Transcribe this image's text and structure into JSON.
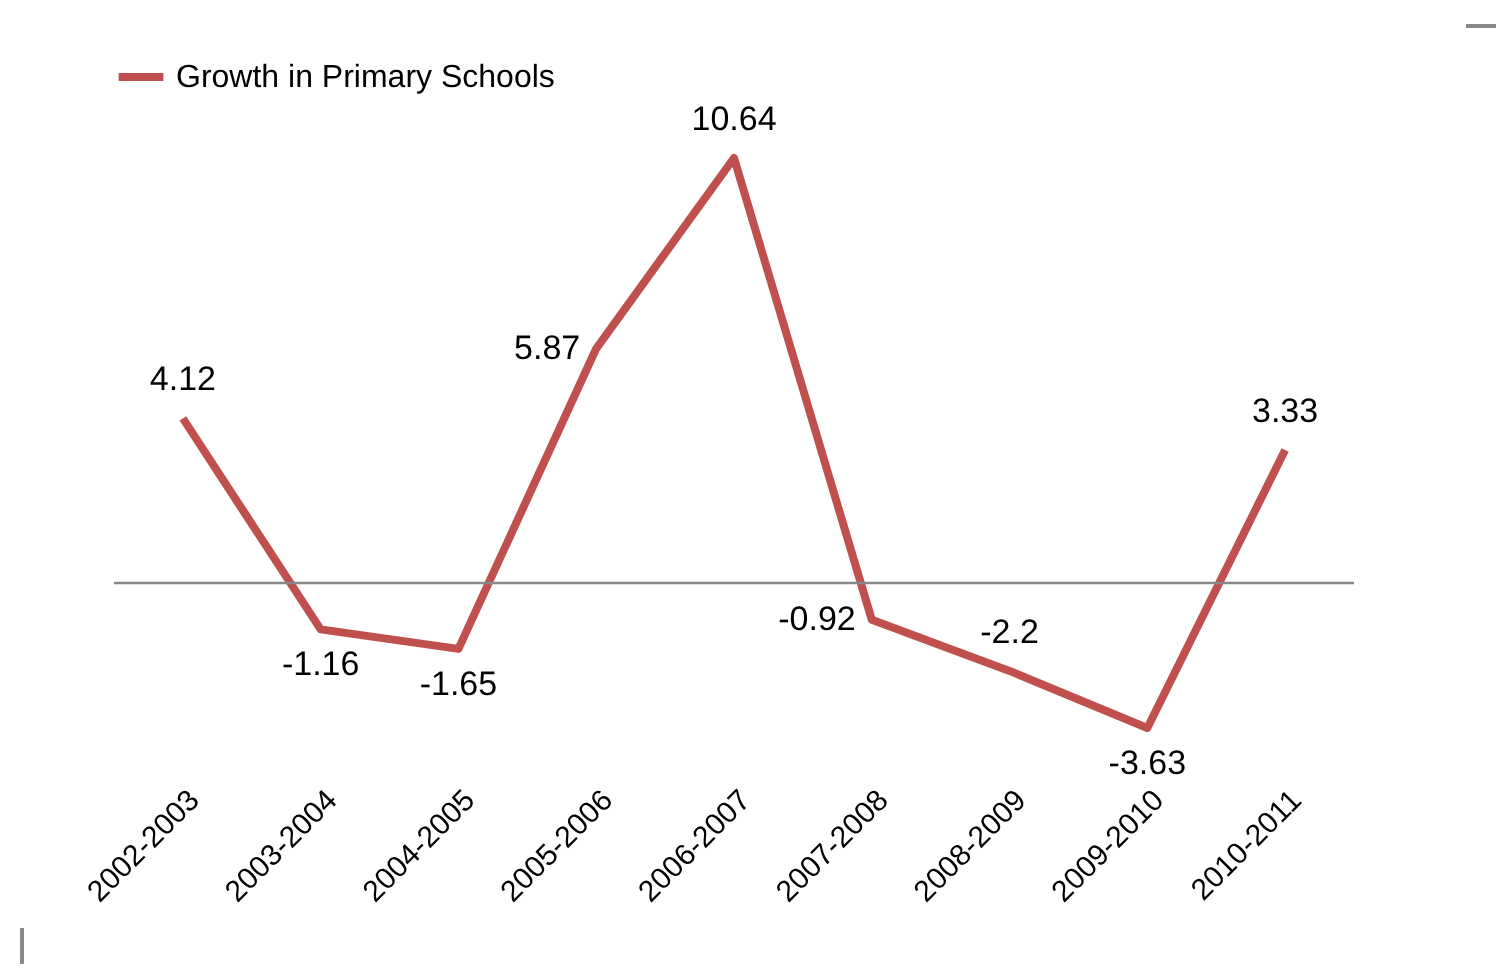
{
  "chart_data": {
    "type": "line",
    "categories": [
      "2002-2003",
      "2003-2004",
      "2004-2005",
      "2005-2006",
      "2006-2007",
      "2007-2008",
      "2008-2009",
      "2009-2010",
      "2010-2011"
    ],
    "series": [
      {
        "name": "Growth in Primary Schools",
        "color": "#c0504d",
        "values": [
          4.12,
          -1.16,
          -1.65,
          5.87,
          10.64,
          -0.92,
          -2.2,
          -3.63,
          3.33
        ]
      }
    ],
    "ref_lines": [
      {
        "axis": "y",
        "value": 0,
        "color": "#888888"
      }
    ],
    "data_labels": true,
    "legend": "top",
    "grid": false,
    "marker": "none"
  }
}
